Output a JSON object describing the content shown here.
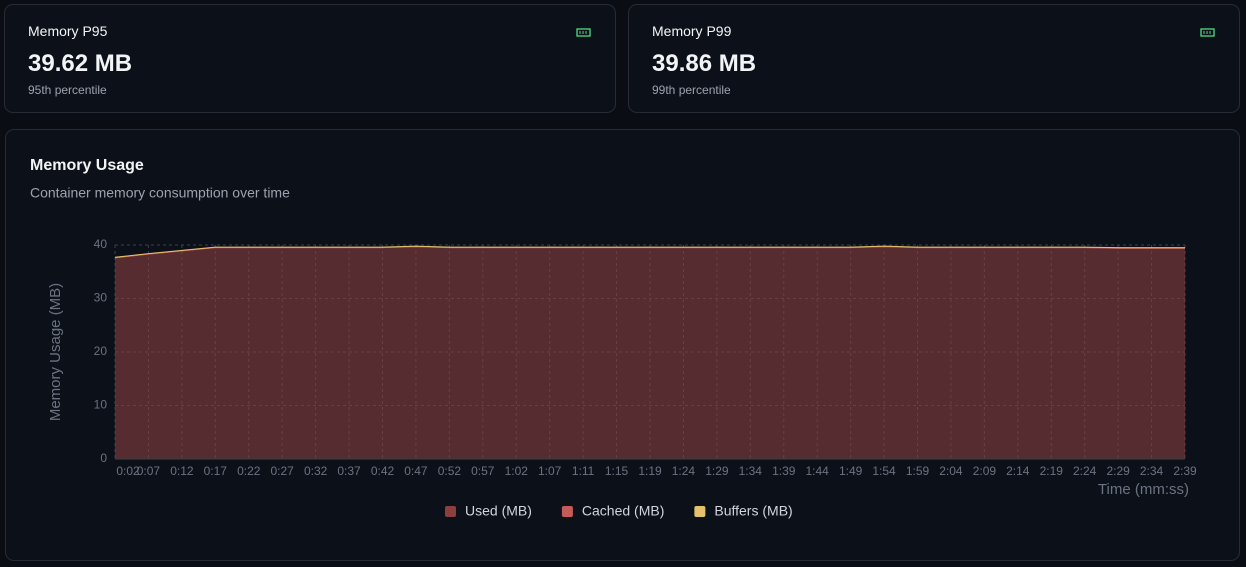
{
  "cards": [
    {
      "title": "Memory P95",
      "value": "39.62 MB",
      "subtitle": "95th percentile"
    },
    {
      "title": "Memory P99",
      "value": "39.86 MB",
      "subtitle": "99th percentile"
    }
  ],
  "chart_card": {
    "title": "Memory Usage",
    "subtitle": "Container memory consumption over time"
  },
  "chart_data": {
    "type": "stacked-area",
    "x_label": "Time (mm:ss)",
    "y_label": "Memory Usage (MB)",
    "categories": [
      "0:02",
      "0:07",
      "0:12",
      "0:17",
      "0:22",
      "0:27",
      "0:32",
      "0:37",
      "0:42",
      "0:47",
      "0:52",
      "0:57",
      "1:02",
      "1:07",
      "1:11",
      "1:15",
      "1:19",
      "1:24",
      "1:29",
      "1:34",
      "1:39",
      "1:44",
      "1:49",
      "1:54",
      "1:59",
      "2:04",
      "2:09",
      "2:14",
      "2:19",
      "2:24",
      "2:29",
      "2:34",
      "2:39"
    ],
    "series": [
      {
        "name": "Used (MB)",
        "color": "#8b3f3f",
        "values": [
          37.6,
          38.3,
          38.9,
          39.5,
          39.5,
          39.5,
          39.5,
          39.5,
          39.5,
          39.7,
          39.5,
          39.5,
          39.5,
          39.5,
          39.5,
          39.5,
          39.5,
          39.5,
          39.5,
          39.5,
          39.5,
          39.5,
          39.5,
          39.7,
          39.5,
          39.5,
          39.5,
          39.5,
          39.5,
          39.5,
          39.4,
          39.4,
          39.4
        ]
      },
      {
        "name": "Cached (MB)",
        "color": "#c65a5a",
        "values": [
          0,
          0,
          0,
          0,
          0,
          0,
          0,
          0,
          0,
          0,
          0,
          0,
          0,
          0,
          0,
          0,
          0,
          0,
          0,
          0,
          0,
          0,
          0,
          0,
          0,
          0,
          0,
          0,
          0,
          0,
          0,
          0,
          0
        ]
      },
      {
        "name": "Buffers (MB)",
        "color": "#e3c26b",
        "values": [
          0.1,
          0.1,
          0.1,
          0.1,
          0.1,
          0.1,
          0.1,
          0.1,
          0.1,
          0.1,
          0.1,
          0.1,
          0.1,
          0.1,
          0.1,
          0.1,
          0.1,
          0.1,
          0.1,
          0.1,
          0.1,
          0.1,
          0.1,
          0.1,
          0.1,
          0.1,
          0.1,
          0.1,
          0.1,
          0.1,
          0.1,
          0.1,
          0.1
        ]
      }
    ],
    "ylim": [
      0,
      40
    ],
    "yticks": [
      0,
      10,
      20,
      30,
      40
    ],
    "grid": true
  }
}
